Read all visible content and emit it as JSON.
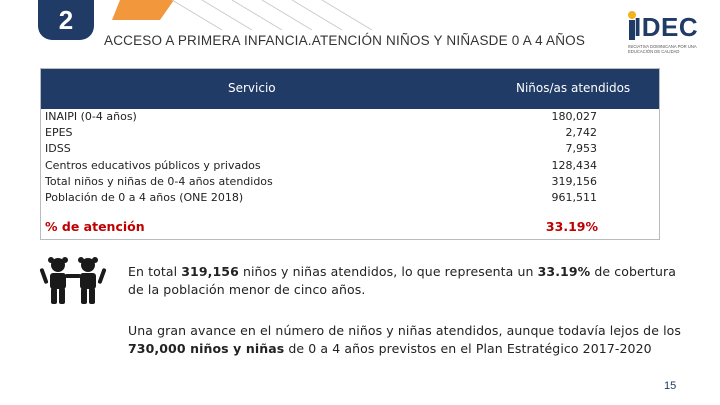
{
  "slide_number": "2",
  "title": "ACCESO A PRIMERA INFANCIA.ATENCIÓN NIÑOS Y NIÑASDE 0 A 4 AÑOS",
  "logo": {
    "name": "IDEC",
    "subtitle": "Iniciativa Dominicana por una Educación de Calidad"
  },
  "table": {
    "headers": {
      "service": "Servicio",
      "count": "Niños/as atendidos"
    },
    "rows": [
      {
        "label": "INAIPI (0-4 años)",
        "value": "180,027"
      },
      {
        "label": "EPES",
        "value": "2,742"
      },
      {
        "label": "IDSS",
        "value": "7,953"
      },
      {
        "label": "Centros educativos públicos y privados",
        "value": "128,434"
      },
      {
        "label": "Total niños y niñas de 0-4 años atendidos",
        "value": "319,156"
      },
      {
        "label": "Población de 0 a 4 años (ONE 2018)",
        "value": "961,511"
      }
    ],
    "rate": {
      "label": "% de atención",
      "value": "33.19%"
    }
  },
  "paragraph1": {
    "part1": "En total ",
    "bold1": "319,156",
    "part2": " niños y niñas atendidos, lo que representa un ",
    "bold2": "33.19%",
    "part3": " de cobertura de la población menor de cinco años."
  },
  "paragraph2": {
    "part1": "Una gran avance en el número de niños y niñas atendidos, aunque todavía lejos de los ",
    "bold1": "730,000 niños y niñas",
    "part2": " de 0 a 4 años previstos en el Plan Estratégico 2017-2020"
  },
  "page_number": "15",
  "colors": {
    "navy": "#1f3b66",
    "accent_orange": "#f28c28",
    "highlight_red": "#c00000"
  },
  "icons": [
    "children-icon",
    "decorative-lines"
  ]
}
